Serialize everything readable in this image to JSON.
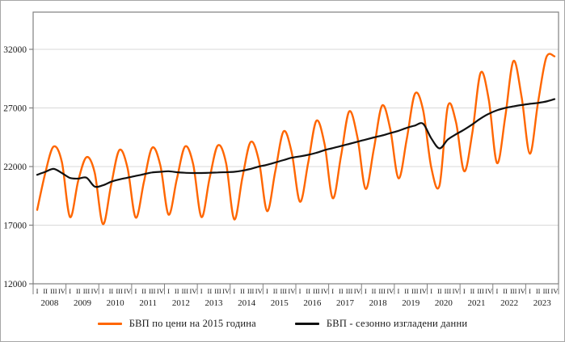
{
  "figure": {
    "background": "#ffffff",
    "border_color": "#a6a6a6",
    "axis_color": "#808080",
    "gridline_color": "#d9d9d9"
  },
  "legend": {
    "items": [
      {
        "label": "БВП  по цени на 2015 година",
        "color": "#ff6600"
      },
      {
        "label": "БВП - сезонно изгладени данни",
        "color": "#111111"
      }
    ]
  },
  "chart_data": {
    "type": "line",
    "title": "",
    "xlabel": "",
    "ylabel": "",
    "grid": true,
    "legend_position": "bottom",
    "ylim": [
      12000,
      32000
    ],
    "yticks": [
      12000,
      17000,
      22000,
      27000,
      32000
    ],
    "x_years": [
      2008,
      2009,
      2010,
      2011,
      2012,
      2013,
      2014,
      2015,
      2016,
      2017,
      2018,
      2019,
      2020,
      2021,
      2022,
      2023
    ],
    "quarter_labels": [
      "I",
      "II",
      "III",
      "IV"
    ],
    "series": [
      {
        "name": "БВП  по цени на 2015 година",
        "color": "#ff6600",
        "width": 2.4,
        "values": [
          18300,
          21500,
          23700,
          22400,
          17700,
          20800,
          22800,
          21500,
          17100,
          20400,
          23400,
          21900,
          17650,
          20700,
          23600,
          22100,
          17900,
          20900,
          23700,
          22200,
          17700,
          21000,
          23800,
          22300,
          17500,
          21100,
          24100,
          22500,
          18200,
          21600,
          25000,
          23200,
          19000,
          22300,
          25900,
          23900,
          19300,
          22900,
          26700,
          24500,
          20100,
          23500,
          27200,
          25200,
          21000,
          24300,
          28200,
          26800,
          21900,
          20400,
          27100,
          25800,
          21600,
          24900,
          30000,
          27700,
          22300,
          26200,
          31000,
          27900,
          23100,
          27500,
          31300,
          31400
        ]
      },
      {
        "name": "БВП - сезонно изгладени данни",
        "color": "#111111",
        "width": 2.2,
        "values": [
          21300,
          21550,
          21800,
          21450,
          21030,
          20970,
          21050,
          20300,
          20400,
          20700,
          20900,
          21050,
          21200,
          21350,
          21500,
          21550,
          21600,
          21520,
          21470,
          21450,
          21450,
          21470,
          21500,
          21520,
          21550,
          21650,
          21800,
          22000,
          22150,
          22350,
          22550,
          22750,
          22870,
          23000,
          23170,
          23400,
          23570,
          23750,
          23930,
          24120,
          24300,
          24480,
          24650,
          24850,
          25050,
          25300,
          25500,
          25650,
          24400,
          23550,
          24300,
          24750,
          25150,
          25600,
          26100,
          26500,
          26800,
          27000,
          27130,
          27250,
          27350,
          27430,
          27550,
          27750
        ]
      }
    ]
  }
}
